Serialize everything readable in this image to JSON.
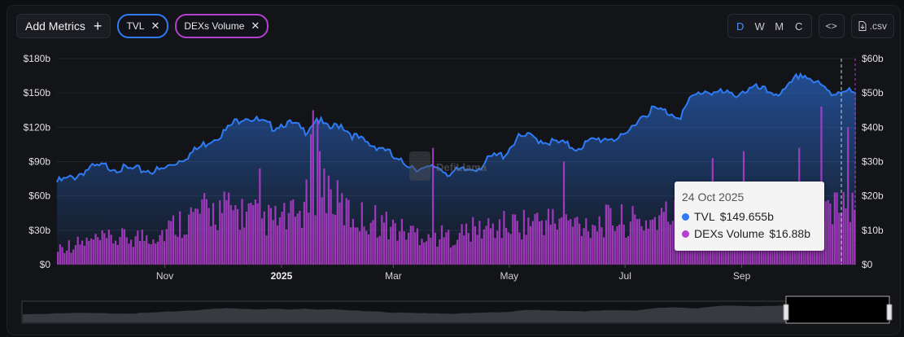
{
  "toolbar": {
    "add_metrics_label": "Add Metrics",
    "add_icon": "plus-icon",
    "pills": [
      {
        "label": "TVL",
        "color": "#2f7bf5"
      },
      {
        "label": "DEXs Volume",
        "color": "#b43ed0"
      }
    ],
    "close_icon": "close-icon",
    "periods": [
      "D",
      "W",
      "M",
      "C"
    ],
    "active_period": "D",
    "embed_icon": "code-icon",
    "csv_label": ".csv",
    "csv_icon": "file-icon"
  },
  "watermark": "DefiLlama",
  "tooltip": {
    "date": "24 Oct 2025",
    "rows": [
      {
        "label": "TVL",
        "value": "$149.655b",
        "color": "#2f7bf5"
      },
      {
        "label": "DEXs Volume",
        "value": "$16.88b",
        "color": "#b43ed0"
      }
    ]
  },
  "chart_data": {
    "type": "area",
    "left_axis_ticks": [
      "$180b",
      "$150b",
      "$120b",
      "$90b",
      "$60b",
      "$30b",
      "$0"
    ],
    "right_axis_ticks": [
      "$60b",
      "$50b",
      "$40b",
      "$30b",
      "$20b",
      "$10b",
      "$0"
    ],
    "ylim_left": [
      0,
      180
    ],
    "ylim_right": [
      0,
      60
    ],
    "x_tick_labels": [
      "Nov",
      "2025",
      "Mar",
      "May",
      "Jul",
      "Sep"
    ],
    "series": [
      {
        "name": "TVL",
        "type": "area",
        "axis": "left",
        "color": "#2f7bf5",
        "anchors": [
          [
            0,
            74
          ],
          [
            0.02,
            78
          ],
          [
            0.04,
            86
          ],
          [
            0.06,
            88
          ],
          [
            0.09,
            85
          ],
          [
            0.13,
            84
          ],
          [
            0.15,
            92
          ],
          [
            0.17,
            100
          ],
          [
            0.19,
            110
          ],
          [
            0.21,
            118
          ],
          [
            0.22,
            125
          ],
          [
            0.235,
            132
          ],
          [
            0.25,
            128
          ],
          [
            0.27,
            122
          ],
          [
            0.285,
            126
          ],
          [
            0.3,
            123
          ],
          [
            0.31,
            118
          ],
          [
            0.325,
            130
          ],
          [
            0.34,
            120
          ],
          [
            0.355,
            125
          ],
          [
            0.37,
            115
          ],
          [
            0.39,
            107
          ],
          [
            0.41,
            104
          ],
          [
            0.425,
            92
          ],
          [
            0.44,
            90
          ],
          [
            0.46,
            84
          ],
          [
            0.475,
            88
          ],
          [
            0.49,
            82
          ],
          [
            0.51,
            84
          ],
          [
            0.53,
            88
          ],
          [
            0.545,
            96
          ],
          [
            0.56,
            98
          ],
          [
            0.575,
            112
          ],
          [
            0.59,
            114
          ],
          [
            0.61,
            110
          ],
          [
            0.63,
            108
          ],
          [
            0.65,
            104
          ],
          [
            0.67,
            110
          ],
          [
            0.69,
            113
          ],
          [
            0.71,
            112
          ],
          [
            0.725,
            128
          ],
          [
            0.745,
            138
          ],
          [
            0.76,
            136
          ],
          [
            0.78,
            132
          ],
          [
            0.795,
            148
          ],
          [
            0.81,
            154
          ],
          [
            0.83,
            152
          ],
          [
            0.845,
            150
          ],
          [
            0.86,
            154
          ],
          [
            0.875,
            156
          ],
          [
            0.89,
            153
          ],
          [
            0.91,
            152
          ],
          [
            0.93,
            169
          ],
          [
            0.94,
            166
          ],
          [
            0.955,
            158
          ],
          [
            0.97,
            151
          ],
          [
            0.985,
            156
          ],
          [
            1,
            150
          ]
        ]
      },
      {
        "name": "DEXs Volume",
        "type": "bar",
        "axis": "right",
        "color": "#b43ed0",
        "anchors": [
          [
            0,
            5
          ],
          [
            0.05,
            7
          ],
          [
            0.1,
            8
          ],
          [
            0.13,
            9
          ],
          [
            0.15,
            12
          ],
          [
            0.18,
            15
          ],
          [
            0.21,
            16
          ],
          [
            0.24,
            15
          ],
          [
            0.26,
            13
          ],
          [
            0.28,
            13
          ],
          [
            0.3,
            14
          ],
          [
            0.32,
            20
          ],
          [
            0.335,
            24
          ],
          [
            0.35,
            18
          ],
          [
            0.37,
            14
          ],
          [
            0.4,
            13
          ],
          [
            0.43,
            10
          ],
          [
            0.46,
            9
          ],
          [
            0.49,
            8
          ],
          [
            0.52,
            10
          ],
          [
            0.55,
            11
          ],
          [
            0.58,
            12
          ],
          [
            0.61,
            13
          ],
          [
            0.64,
            12
          ],
          [
            0.67,
            12
          ],
          [
            0.7,
            13
          ],
          [
            0.73,
            12
          ],
          [
            0.76,
            14
          ],
          [
            0.79,
            15
          ],
          [
            0.82,
            16
          ],
          [
            0.85,
            15
          ],
          [
            0.88,
            16
          ],
          [
            0.91,
            17
          ],
          [
            0.94,
            16
          ],
          [
            0.97,
            17
          ],
          [
            1,
            16
          ]
        ],
        "spikes": [
          [
            0.255,
            28
          ],
          [
            0.318,
            38
          ],
          [
            0.322,
            45
          ],
          [
            0.326,
            42
          ],
          [
            0.33,
            33
          ],
          [
            0.335,
            28
          ],
          [
            0.47,
            34
          ],
          [
            0.635,
            30
          ],
          [
            0.82,
            31
          ],
          [
            0.86,
            33
          ],
          [
            0.915,
            24
          ],
          [
            0.93,
            34
          ],
          [
            0.958,
            46
          ],
          [
            0.975,
            21
          ],
          [
            0.99,
            40
          ]
        ]
      }
    ]
  }
}
